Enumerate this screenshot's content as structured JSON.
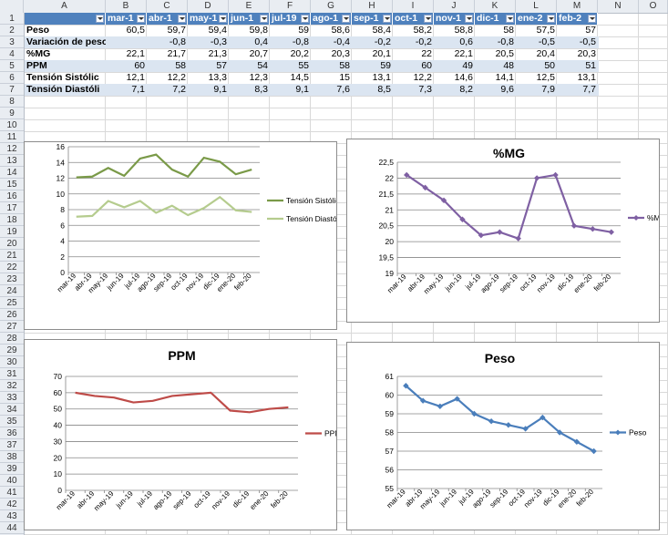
{
  "columns": [
    "A",
    "B",
    "C",
    "D",
    "E",
    "F",
    "G",
    "H",
    "I",
    "J",
    "K",
    "L",
    "M",
    "N",
    "O"
  ],
  "rows": [
    "1",
    "2",
    "3",
    "4",
    "5",
    "6",
    "7",
    "8",
    "9",
    "10",
    "11",
    "12",
    "13",
    "14",
    "15",
    "16",
    "17",
    "18",
    "19",
    "20",
    "21",
    "22",
    "23",
    "24",
    "25",
    "26",
    "27",
    "28",
    "29",
    "30",
    "31",
    "32",
    "33",
    "34",
    "35",
    "36",
    "37",
    "38",
    "39",
    "40",
    "41",
    "42",
    "43",
    "44"
  ],
  "table": {
    "headers": [
      "mar-1",
      "abr-1",
      "may-1",
      "jun-1",
      "jul-19",
      "ago-1",
      "sep-1",
      "oct-1",
      "nov-1",
      "dic-1",
      "ene-2",
      "feb-2"
    ],
    "rows": [
      {
        "label": "Peso",
        "values": [
          "60,5",
          "59,7",
          "59,4",
          "59,8",
          "59",
          "58,6",
          "58,4",
          "58,2",
          "58,8",
          "58",
          "57,5",
          "57"
        ]
      },
      {
        "label": "Variación de peso",
        "values": [
          "",
          "-0,8",
          "-0,3",
          "0,4",
          "-0,8",
          "-0,4",
          "-0,2",
          "-0,2",
          "0,6",
          "-0,8",
          "-0,5",
          "-0,5"
        ]
      },
      {
        "label": "%MG",
        "values": [
          "22,1",
          "21,7",
          "21,3",
          "20,7",
          "20,2",
          "20,3",
          "20,1",
          "22",
          "22,1",
          "20,5",
          "20,4",
          "20,3"
        ]
      },
      {
        "label": "PPM",
        "values": [
          "60",
          "58",
          "57",
          "54",
          "55",
          "58",
          "59",
          "60",
          "49",
          "48",
          "50",
          "51"
        ]
      },
      {
        "label": "Tensión Sistólic",
        "values": [
          "12,1",
          "12,2",
          "13,3",
          "12,3",
          "14,5",
          "15",
          "13,1",
          "12,2",
          "14,6",
          "14,1",
          "12,5",
          "13,1"
        ]
      },
      {
        "label": "Tensión Diastóli",
        "values": [
          "7,1",
          "7,2",
          "9,1",
          "8,3",
          "9,1",
          "7,6",
          "8,5",
          "7,3",
          "8,2",
          "9,6",
          "7,9",
          "7,7"
        ]
      }
    ]
  },
  "chart_data": [
    {
      "type": "line",
      "title": "",
      "categories": [
        "mar-19",
        "abr-19",
        "may-19",
        "jun-19",
        "jul-19",
        "ago-19",
        "sep-19",
        "oct-19",
        "nov-19",
        "dic-19",
        "ene-20",
        "feb-20"
      ],
      "series": [
        {
          "name": "Tensión Sistólica",
          "color": "#7a9a48",
          "values": [
            12.1,
            12.2,
            13.3,
            12.3,
            14.5,
            15,
            13.1,
            12.2,
            14.6,
            14.1,
            12.5,
            13.1
          ]
        },
        {
          "name": "Tensión Diastólica",
          "color": "#b5cc8e",
          "values": [
            7.1,
            7.2,
            9.1,
            8.3,
            9.1,
            7.6,
            8.5,
            7.3,
            8.2,
            9.6,
            7.9,
            7.7
          ]
        }
      ],
      "ylim": [
        0,
        16
      ],
      "ystep": 2,
      "grid": true,
      "legend": "right",
      "markers": false
    },
    {
      "type": "line",
      "title": "%MG",
      "categories": [
        "mar-19",
        "abr-19",
        "may-19",
        "jun-19",
        "jul-19",
        "ago-19",
        "sep-19",
        "oct-19",
        "nov-19",
        "dic-19",
        "ene-20",
        "feb-20"
      ],
      "series": [
        {
          "name": "%MG",
          "color": "#7f60a3",
          "values": [
            22.1,
            21.7,
            21.3,
            20.7,
            20.2,
            20.3,
            20.1,
            22,
            22.1,
            20.5,
            20.4,
            20.3
          ]
        }
      ],
      "ylim": [
        19,
        22.5
      ],
      "ystep": 0.5,
      "grid": true,
      "legend": "right",
      "markers": true
    },
    {
      "type": "line",
      "title": "PPM",
      "categories": [
        "mar-19",
        "abr-19",
        "may-19",
        "jun-19",
        "jul-19",
        "ago-19",
        "sep-19",
        "oct-19",
        "nov-19",
        "dic-19",
        "ene-20",
        "feb-20"
      ],
      "series": [
        {
          "name": "PPM",
          "color": "#be4b48",
          "values": [
            60,
            58,
            57,
            54,
            55,
            58,
            59,
            60,
            49,
            48,
            50,
            51
          ]
        }
      ],
      "ylim": [
        0,
        70
      ],
      "ystep": 10,
      "grid": true,
      "legend": "right",
      "markers": false
    },
    {
      "type": "line",
      "title": "Peso",
      "categories": [
        "mar-19",
        "abr-19",
        "may-19",
        "jun-19",
        "jul-19",
        "ago-19",
        "sep-19",
        "oct-19",
        "nov-19",
        "dic-19",
        "ene-20",
        "feb-20"
      ],
      "series": [
        {
          "name": "Peso",
          "color": "#4a7ebb",
          "values": [
            60.5,
            59.7,
            59.4,
            59.8,
            59,
            58.6,
            58.4,
            58.2,
            58.8,
            58,
            57.5,
            57
          ]
        }
      ],
      "ylim": [
        55,
        61
      ],
      "ystep": 1,
      "grid": true,
      "legend": "right",
      "markers": true
    }
  ]
}
